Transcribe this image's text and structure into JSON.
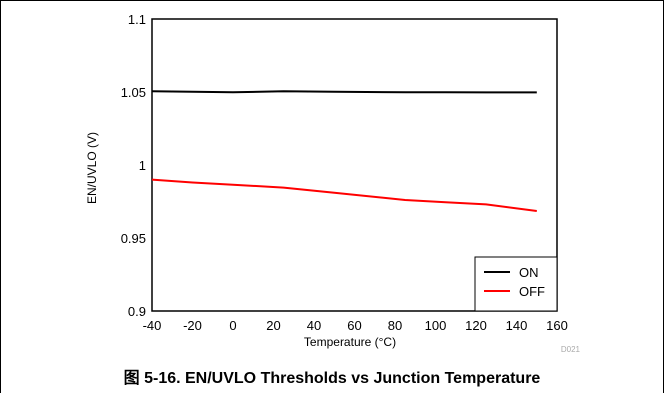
{
  "figure": {
    "caption": "图 5-16. EN/UVLO Thresholds vs Junction Temperature",
    "code": "D021"
  },
  "chart_data": {
    "type": "line",
    "title": "",
    "xlabel": "Temperature (°C)",
    "ylabel": "EN/UVLO (V)",
    "xlim": [
      -40,
      160
    ],
    "ylim": [
      0.9,
      1.1
    ],
    "xticks": [
      -40,
      -20,
      0,
      20,
      40,
      60,
      80,
      100,
      120,
      140,
      160
    ],
    "yticks": [
      0.9,
      0.95,
      1,
      1.05,
      1.1
    ],
    "ytick_labels": [
      "0.9",
      "0.95",
      "1",
      "1.05",
      "1.1"
    ],
    "grid": true,
    "legend_position": "bottom-right",
    "series": [
      {
        "name": "ON",
        "color": "#000000",
        "x": [
          -40,
          -20,
          0,
          25,
          50,
          85,
          105,
          125,
          150
        ],
        "y": [
          1.0505,
          1.0502,
          1.0498,
          1.0505,
          1.0502,
          1.0498,
          1.0498,
          1.0497,
          1.0497
        ]
      },
      {
        "name": "OFF",
        "color": "#ff0000",
        "x": [
          -40,
          -20,
          0,
          25,
          50,
          85,
          105,
          125,
          150
        ],
        "y": [
          0.99,
          0.988,
          0.9865,
          0.9845,
          0.981,
          0.976,
          0.9745,
          0.973,
          0.9685
        ]
      }
    ]
  }
}
